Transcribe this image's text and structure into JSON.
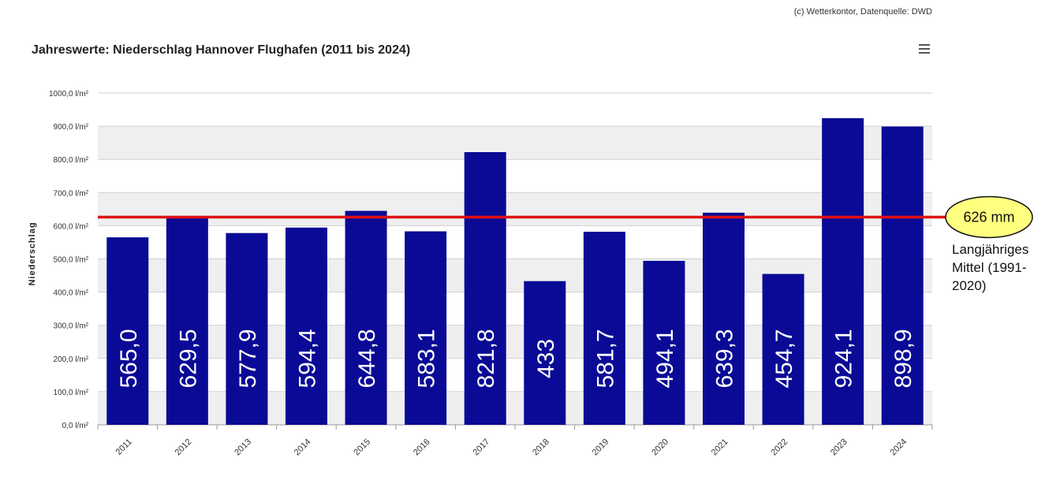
{
  "credit": "(c) Wetterkontor, Datenquelle: DWD",
  "menu_icon": "hamburger-menu-icon",
  "chart_data": {
    "type": "bar",
    "title": "Jahreswerte: Niederschlag Hannover Flughafen (2011 bis 2024)",
    "ylabel": "Niederschlag",
    "xlabel": "",
    "categories": [
      "2011",
      "2012",
      "2013",
      "2014",
      "2015",
      "2016",
      "2017",
      "2018",
      "2019",
      "2020",
      "2021",
      "2022",
      "2023",
      "2024"
    ],
    "values": [
      565.0,
      629.5,
      577.9,
      594.4,
      644.8,
      583.1,
      821.8,
      433,
      581.7,
      494.1,
      639.3,
      454.7,
      924.1,
      898.9
    ],
    "value_labels": [
      "565,0",
      "629,5",
      "577,9",
      "594,4",
      "644,8",
      "583,1",
      "821,8",
      "433",
      "581,7",
      "494,1",
      "639,3",
      "454,7",
      "924,1",
      "898,9"
    ],
    "ylim": [
      0,
      1000
    ],
    "yticks": [
      0,
      100,
      200,
      300,
      400,
      500,
      600,
      700,
      800,
      900,
      1000
    ],
    "ytick_labels": [
      "0,0 l/m²",
      "100,0 l/m²",
      "200,0 l/m²",
      "300,0 l/m²",
      "400,0 l/m²",
      "500,0 l/m²",
      "600,0 l/m²",
      "700,0 l/m²",
      "800,0 l/m²",
      "900,0 l/m²",
      "1000,0 l/m²"
    ],
    "grid": true,
    "legend": "none",
    "bar_color": "#0a0a96",
    "reference_line": {
      "value": 626,
      "color": "#dd1111",
      "label": "626 mm",
      "note_lines": [
        "Langjähriges",
        "Mittel (1991-",
        "2020)"
      ]
    }
  },
  "colors": {
    "band": "#efefef",
    "grid": "#d0d0d0",
    "annotation_fill": "#ffff80"
  }
}
